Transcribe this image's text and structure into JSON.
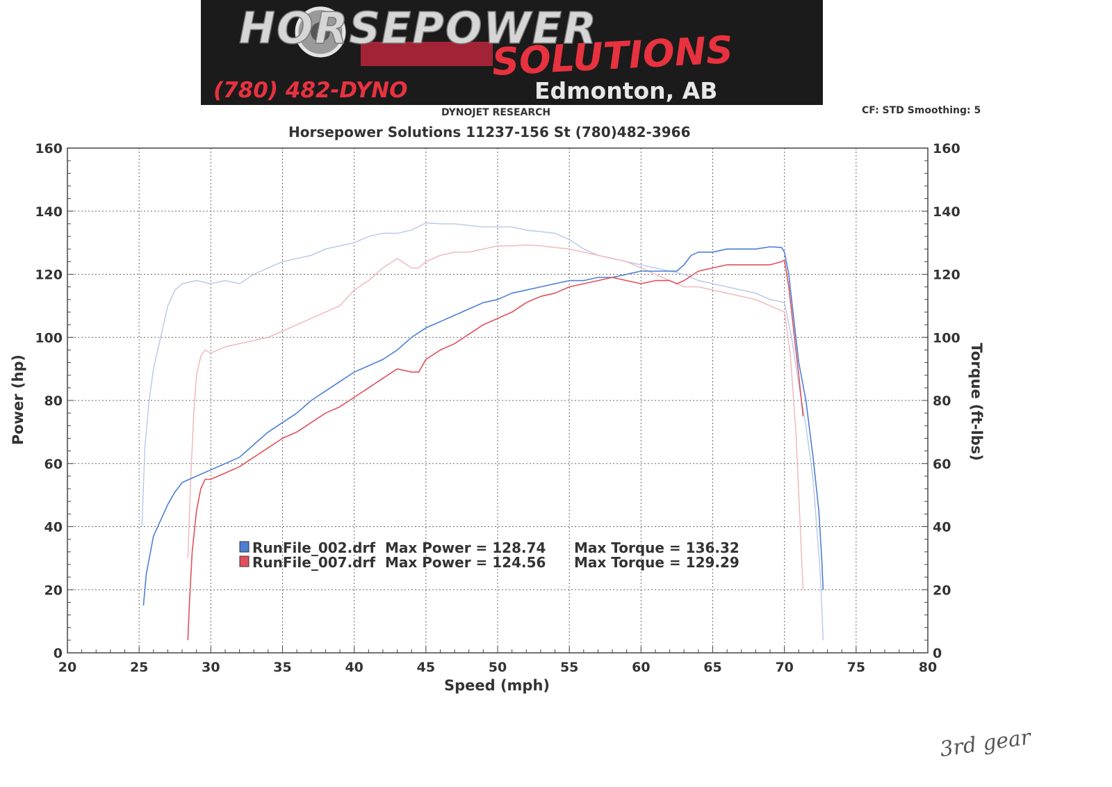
{
  "header": {
    "logo_word_1": "HORSEPOWER",
    "logo_word_2": "SOLUTIONS",
    "logo_phone": "(780) 482-DYNO",
    "logo_city": "Edmonton, AB",
    "logo_colors": {
      "background": "#1b1b1b",
      "accent": "#e8323f",
      "silver": "#d6d6d6"
    },
    "brand": "DYNOJET RESEARCH",
    "settings": "CF: STD  Smoothing: 5"
  },
  "handwritten_note": "3rd gear",
  "chart_data": {
    "type": "line",
    "title": "Horsepower Solutions 11237-156 St (780)482-3966",
    "xlabel": "Speed (mph)",
    "ylabel": "Power (hp)",
    "y2label": "Torque (ft-lbs)",
    "xlim": [
      20,
      80
    ],
    "ylim": [
      0,
      160
    ],
    "y2lim": [
      0,
      160
    ],
    "xticks": [
      20,
      25,
      30,
      35,
      40,
      45,
      50,
      55,
      60,
      65,
      70,
      75,
      80
    ],
    "yticks": [
      0,
      20,
      40,
      60,
      80,
      100,
      120,
      140,
      160
    ],
    "grid": true,
    "legend": [
      {
        "file": "RunFile_002.drf",
        "power_label": "Max Power = 128.74",
        "torque_label": "Max Torque = 136.32",
        "color": "#4a7fd4"
      },
      {
        "file": "RunFile_007.drf",
        "power_label": "Max Power = 124.56",
        "torque_label": "Max Torque = 129.29",
        "color": "#e0505a"
      }
    ],
    "series": [
      {
        "name": "RunFile_002.drf",
        "measure": "power",
        "color": "#4a7fd4",
        "width": 1.6,
        "x": [
          25.3,
          25.5,
          26.0,
          26.5,
          27.0,
          27.5,
          28.0,
          29.0,
          30.0,
          31.0,
          32.0,
          33.0,
          34.0,
          35.0,
          36.0,
          37.0,
          38.0,
          39.0,
          40.0,
          41.0,
          42.0,
          43.0,
          44.0,
          45.0,
          46.0,
          47.0,
          48.0,
          49.0,
          50.0,
          51.0,
          52.0,
          53.0,
          54.0,
          55.0,
          56.0,
          57.0,
          58.0,
          59.0,
          60.0,
          61.0,
          62.0,
          62.5,
          63.0,
          63.5,
          64.0,
          65.0,
          66.0,
          67.0,
          68.0,
          69.0,
          69.8,
          70.0,
          70.3,
          70.6,
          71.0,
          71.5,
          72.0,
          72.4,
          72.6,
          72.7
        ],
        "y": [
          15,
          25,
          37,
          42,
          47,
          51,
          54,
          56,
          58,
          60,
          62,
          66,
          70,
          73,
          76,
          80,
          83,
          86,
          89,
          91,
          93,
          96,
          100,
          103,
          105,
          107,
          109,
          111,
          112,
          114,
          115,
          116,
          117,
          118,
          118,
          119,
          119,
          120,
          121,
          121,
          121,
          121,
          123,
          126,
          127,
          127,
          128,
          128,
          128,
          128.7,
          128.5,
          127,
          120,
          108,
          92,
          80,
          62,
          45,
          30,
          20
        ]
      },
      {
        "name": "RunFile_007.drf",
        "measure": "power",
        "color": "#e0505a",
        "width": 1.6,
        "x": [
          28.4,
          28.5,
          28.7,
          29.0,
          29.3,
          29.6,
          30.0,
          31.0,
          32.0,
          33.0,
          34.0,
          35.0,
          36.0,
          37.0,
          38.0,
          39.0,
          40.0,
          41.0,
          42.0,
          43.0,
          44.0,
          44.5,
          45.0,
          46.0,
          47.0,
          48.0,
          49.0,
          50.0,
          51.0,
          52.0,
          53.0,
          54.0,
          55.0,
          56.0,
          57.0,
          58.0,
          59.0,
          60.0,
          61.0,
          62.0,
          62.5,
          63.0,
          64.0,
          65.0,
          66.0,
          67.0,
          68.0,
          69.0,
          69.8,
          70.0,
          70.3,
          70.7,
          71.0,
          71.3
        ],
        "y": [
          4,
          15,
          32,
          45,
          52,
          55,
          55,
          57,
          59,
          62,
          65,
          68,
          70,
          73,
          76,
          78,
          81,
          84,
          87,
          90,
          89,
          89,
          93,
          96,
          98,
          101,
          104,
          106,
          108,
          111,
          113,
          114,
          116,
          117,
          118,
          119,
          118,
          117,
          118,
          118,
          117,
          118,
          121,
          122,
          123,
          123,
          123,
          123,
          124,
          124.5,
          116,
          100,
          88,
          75
        ]
      },
      {
        "name": "RunFile_002.drf",
        "measure": "torque",
        "color": "#b9c6ea",
        "width": 1.4,
        "x": [
          25.2,
          25.4,
          25.7,
          26.0,
          26.5,
          27.0,
          27.5,
          28.0,
          29.0,
          30.0,
          31.0,
          32.0,
          33.0,
          34.0,
          35.0,
          36.0,
          37.0,
          38.0,
          39.0,
          40.0,
          41.0,
          42.0,
          43.0,
          44.0,
          45.0,
          46.0,
          47.0,
          48.0,
          49.0,
          50.0,
          51.0,
          52.0,
          53.0,
          54.0,
          55.0,
          56.0,
          57.0,
          58.0,
          59.0,
          60.0,
          61.0,
          62.0,
          63.0,
          64.0,
          65.0,
          66.0,
          67.0,
          68.0,
          69.0,
          70.0,
          70.5,
          71.0,
          71.5,
          72.0,
          72.5,
          72.7
        ],
        "y": [
          40,
          65,
          80,
          90,
          100,
          110,
          115,
          117,
          118,
          117,
          118,
          117,
          120,
          122,
          124,
          125,
          126,
          128,
          129,
          130,
          132,
          133,
          133,
          134,
          136.3,
          136,
          136,
          135.5,
          135,
          135,
          135,
          134,
          133.5,
          133,
          131,
          128,
          126,
          125,
          124,
          123,
          122,
          121,
          120,
          118,
          117,
          116,
          115,
          114,
          112,
          111,
          100,
          85,
          72,
          55,
          25,
          4
        ]
      },
      {
        "name": "RunFile_007.drf",
        "measure": "torque",
        "color": "#f0b4b8",
        "width": 1.4,
        "x": [
          28.4,
          28.6,
          28.8,
          29.0,
          29.3,
          29.6,
          30.0,
          31.0,
          32.0,
          33.0,
          34.0,
          35.0,
          36.0,
          37.0,
          38.0,
          39.0,
          40.0,
          41.0,
          42.0,
          43.0,
          44.0,
          44.5,
          45.0,
          46.0,
          47.0,
          48.0,
          49.0,
          50.0,
          51.0,
          52.0,
          53.0,
          54.0,
          55.0,
          56.0,
          57.0,
          58.0,
          59.0,
          60.0,
          61.0,
          62.0,
          63.0,
          64.0,
          65.0,
          66.0,
          67.0,
          68.0,
          69.0,
          70.0,
          70.4,
          70.8,
          71.1,
          71.3
        ],
        "y": [
          30,
          55,
          75,
          88,
          94,
          96,
          95,
          97,
          98,
          99,
          100,
          102,
          104,
          106,
          108,
          110,
          115,
          118,
          122,
          125,
          122,
          122,
          124,
          126,
          127,
          127,
          128,
          129,
          129,
          129.3,
          129,
          128.5,
          128,
          127,
          126,
          125,
          124,
          122,
          120,
          118,
          116,
          116,
          115,
          114,
          113,
          112,
          110,
          108,
          95,
          70,
          40,
          20
        ]
      }
    ]
  }
}
